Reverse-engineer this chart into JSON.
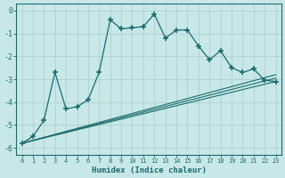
{
  "xlabel": "Humidex (Indice chaleur)",
  "background_color": "#c8e8e8",
  "grid_color": "#b0d0d0",
  "line_color": "#1a6b6b",
  "xlim": [
    -0.5,
    23.5
  ],
  "ylim": [
    -6.3,
    0.3
  ],
  "xtick_labels": [
    "0",
    "1",
    "2",
    "3",
    "4",
    "5",
    "6",
    "7",
    "8",
    "9",
    "10",
    "11",
    "12",
    "13",
    "14",
    "15",
    "16",
    "17",
    "18",
    "19",
    "20",
    "21",
    "22",
    "23"
  ],
  "ytick_values": [
    0,
    -1,
    -2,
    -3,
    -4,
    -5,
    -6
  ],
  "main_series": {
    "x": [
      0,
      1,
      2,
      3,
      4,
      5,
      6,
      7,
      8,
      9,
      10,
      11,
      12,
      13,
      14,
      15,
      16,
      17,
      18,
      19,
      20,
      21,
      22,
      23
    ],
    "y": [
      -5.8,
      -5.5,
      -4.8,
      -2.7,
      -4.3,
      -4.2,
      -3.9,
      -2.7,
      -0.4,
      -0.8,
      -0.75,
      -0.7,
      -0.15,
      -1.2,
      -0.85,
      -0.85,
      -1.55,
      -2.15,
      -1.75,
      -2.5,
      -2.7,
      -2.55,
      -3.05,
      -3.1
    ]
  },
  "smooth_lines": [
    {
      "x": [
        0,
        23
      ],
      "y": [
        -5.8,
        -3.1
      ]
    },
    {
      "x": [
        0,
        23
      ],
      "y": [
        -5.8,
        -2.95
      ]
    },
    {
      "x": [
        0,
        23
      ],
      "y": [
        -5.8,
        -2.8
      ]
    }
  ]
}
